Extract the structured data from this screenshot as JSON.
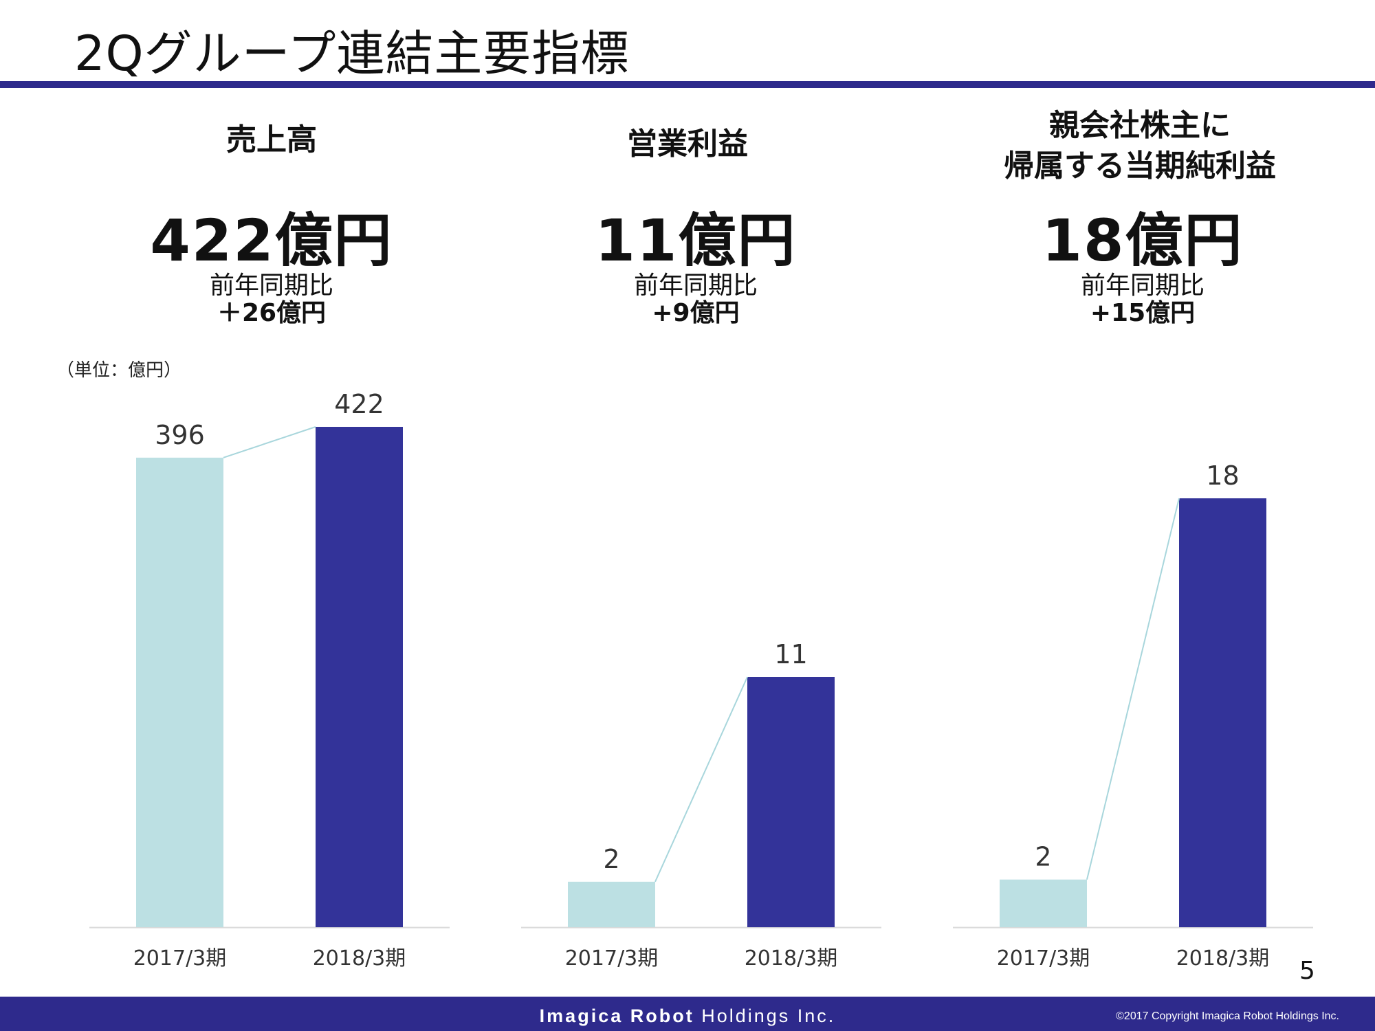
{
  "title": "2Qグループ連結主要指標",
  "unit_note": "（単位：億円）",
  "kpis": [
    {
      "heading_line1": "売上高",
      "heading_line2": "",
      "value": "422億円",
      "yoy_label": "前年同期比",
      "yoy_value": "＋26億円"
    },
    {
      "heading_line1": "営業利益",
      "heading_line2": "",
      "value": "11億円",
      "yoy_label": "前年同期比",
      "yoy_value": "+9億円"
    },
    {
      "heading_line1": "親会社株主に",
      "heading_line2": "帰属する当期純利益",
      "value": "18億円",
      "yoy_label": "前年同期比",
      "yoy_value": "+15億円"
    }
  ],
  "colors": {
    "prior": "#bce0e3",
    "current": "#333399",
    "line": "#a8d6dc",
    "axis": "#d9d9d9",
    "brand": "#2e2a8c"
  },
  "chart_data": [
    {
      "type": "bar",
      "categories": [
        "2017/3期",
        "2018/3期"
      ],
      "values": [
        396,
        422
      ],
      "ylim": [
        0,
        422
      ]
    },
    {
      "type": "bar",
      "categories": [
        "2017/3期",
        "2018/3期"
      ],
      "values": [
        2,
        11
      ],
      "ylim": [
        0,
        22
      ]
    },
    {
      "type": "bar",
      "categories": [
        "2017/3期",
        "2018/3期"
      ],
      "values": [
        2,
        18
      ],
      "ylim": [
        0,
        21
      ]
    }
  ],
  "footer": {
    "company_bold": "Imagica Robot",
    "company_rest": "Holdings Inc.",
    "copyright": "©2017  Copyright Imagica Robot Holdings Inc."
  },
  "page_number": "5"
}
